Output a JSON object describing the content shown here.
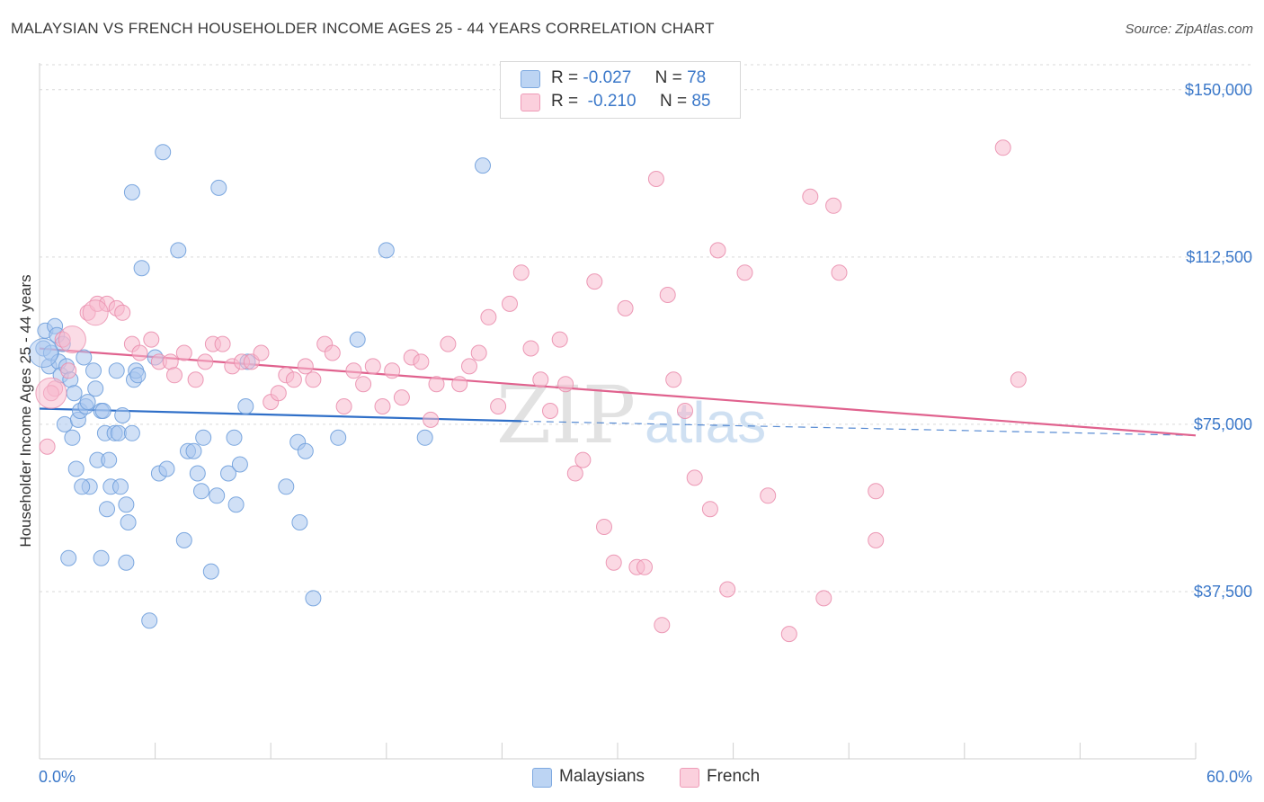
{
  "title": "MALAYSIAN VS FRENCH HOUSEHOLDER INCOME AGES 25 - 44 YEARS CORRELATION CHART",
  "source": "Source: ZipAtlas.com",
  "watermark": {
    "zip": "ZIP",
    "atlas": "atlas"
  },
  "stats": {
    "rows": [
      {
        "r_label": "R =",
        "r_value": "-0.027",
        "n_label": "N =",
        "n_value": "78"
      },
      {
        "r_label": "R =",
        "r_value": "-0.210",
        "n_label": "N =",
        "n_value": "85"
      }
    ]
  },
  "legend": {
    "malaysians": "Malaysians",
    "french": "French"
  },
  "colors": {
    "malaysians_fill": "#a9c7ef",
    "malaysians_stroke": "#6f9fdc",
    "malaysians_line": "#2f6fc8",
    "french_fill": "#f7b9cd",
    "french_stroke": "#ea8fae",
    "french_line": "#e0628e",
    "grid": "#d9d9d9",
    "axis_text": "#3b78c9"
  },
  "chart_data": {
    "type": "scatter",
    "title": "MALAYSIAN VS FRENCH HOUSEHOLDER INCOME AGES 25 - 44 YEARS CORRELATION CHART",
    "xlabel": "",
    "ylabel": "Householder Income Ages 25 - 44 years",
    "xlim": [
      0,
      60
    ],
    "ylim": [
      0,
      156000
    ],
    "x_tick_labels": [
      "0.0%",
      "60.0%"
    ],
    "y_ticks": [
      {
        "value": 37500,
        "label": "$37,500"
      },
      {
        "value": 75000,
        "label": "$75,000"
      },
      {
        "value": 112500,
        "label": "$112,500"
      },
      {
        "value": 150000,
        "label": "$150,000"
      }
    ],
    "grid": true,
    "series": [
      {
        "name": "Malaysians",
        "R": -0.027,
        "N": 78,
        "trend": {
          "x": [
            0,
            25
          ],
          "y": [
            78500,
            75700
          ],
          "dashed_to_x": 60,
          "dashed_to_y": 72500
        },
        "points": [
          [
            0.2,
            92000
          ],
          [
            0.3,
            96000
          ],
          [
            0.5,
            88000
          ],
          [
            0.6,
            91000
          ],
          [
            0.8,
            97000
          ],
          [
            0.9,
            95000
          ],
          [
            1.0,
            89000
          ],
          [
            1.1,
            86000
          ],
          [
            1.2,
            93000
          ],
          [
            1.3,
            75000
          ],
          [
            1.4,
            88000
          ],
          [
            1.6,
            85000
          ],
          [
            1.7,
            72000
          ],
          [
            1.8,
            82000
          ],
          [
            1.9,
            65000
          ],
          [
            2.0,
            76000
          ],
          [
            2.1,
            78000
          ],
          [
            2.3,
            90000
          ],
          [
            2.4,
            79000
          ],
          [
            2.5,
            80000
          ],
          [
            2.6,
            61000
          ],
          [
            2.8,
            87000
          ],
          [
            2.9,
            83000
          ],
          [
            3.0,
            67000
          ],
          [
            3.2,
            78000
          ],
          [
            3.4,
            73000
          ],
          [
            3.5,
            56000
          ],
          [
            3.6,
            67000
          ],
          [
            3.7,
            61000
          ],
          [
            3.9,
            73000
          ],
          [
            4.0,
            87000
          ],
          [
            4.1,
            73000
          ],
          [
            4.2,
            61000
          ],
          [
            4.3,
            77000
          ],
          [
            4.5,
            57000
          ],
          [
            4.6,
            53000
          ],
          [
            4.8,
            73000
          ],
          [
            4.9,
            85000
          ],
          [
            5.0,
            87000
          ],
          [
            5.1,
            86000
          ],
          [
            4.8,
            127000
          ],
          [
            5.3,
            110000
          ],
          [
            5.7,
            31000
          ],
          [
            6.0,
            90000
          ],
          [
            6.2,
            64000
          ],
          [
            6.4,
            136000
          ],
          [
            6.6,
            65000
          ],
          [
            7.2,
            114000
          ],
          [
            7.5,
            49000
          ],
          [
            7.7,
            69000
          ],
          [
            8.0,
            69000
          ],
          [
            8.2,
            64000
          ],
          [
            8.4,
            60000
          ],
          [
            8.5,
            72000
          ],
          [
            8.9,
            42000
          ],
          [
            9.2,
            59000
          ],
          [
            9.3,
            128000
          ],
          [
            9.8,
            64000
          ],
          [
            10.1,
            72000
          ],
          [
            10.2,
            57000
          ],
          [
            10.4,
            66000
          ],
          [
            10.7,
            79000
          ],
          [
            10.8,
            89000
          ],
          [
            12.8,
            61000
          ],
          [
            13.4,
            71000
          ],
          [
            13.5,
            53000
          ],
          [
            13.8,
            69000
          ],
          [
            14.2,
            36000
          ],
          [
            15.5,
            72000
          ],
          [
            16.5,
            94000
          ],
          [
            18.0,
            114000
          ],
          [
            20.0,
            72000
          ],
          [
            23.0,
            133000
          ],
          [
            3.2,
            45000
          ],
          [
            4.5,
            44000
          ],
          [
            1.5,
            45000
          ],
          [
            3.3,
            78000
          ],
          [
            2.2,
            61000
          ]
        ]
      },
      {
        "name": "French",
        "R": -0.21,
        "N": 85,
        "trend": {
          "x": [
            0,
            60
          ],
          "y": [
            92000,
            72500
          ]
        },
        "points": [
          [
            0.4,
            70000
          ],
          [
            0.8,
            83000
          ],
          [
            1.2,
            94000
          ],
          [
            1.5,
            87000
          ],
          [
            2.5,
            100000
          ],
          [
            3.0,
            102000
          ],
          [
            3.5,
            102000
          ],
          [
            4.0,
            101000
          ],
          [
            4.3,
            100000
          ],
          [
            4.8,
            93000
          ],
          [
            5.2,
            91000
          ],
          [
            5.8,
            94000
          ],
          [
            6.2,
            89000
          ],
          [
            6.8,
            89000
          ],
          [
            7.0,
            86000
          ],
          [
            7.5,
            91000
          ],
          [
            8.1,
            85000
          ],
          [
            8.6,
            89000
          ],
          [
            9.0,
            93000
          ],
          [
            9.5,
            93000
          ],
          [
            10.0,
            88000
          ],
          [
            10.5,
            89000
          ],
          [
            11.0,
            89000
          ],
          [
            11.5,
            91000
          ],
          [
            12.0,
            80000
          ],
          [
            12.4,
            82000
          ],
          [
            12.8,
            86000
          ],
          [
            13.2,
            85000
          ],
          [
            13.8,
            88000
          ],
          [
            14.2,
            85000
          ],
          [
            14.8,
            93000
          ],
          [
            15.2,
            91000
          ],
          [
            15.8,
            79000
          ],
          [
            16.3,
            87000
          ],
          [
            16.8,
            84000
          ],
          [
            17.3,
            88000
          ],
          [
            17.8,
            79000
          ],
          [
            18.3,
            87000
          ],
          [
            18.8,
            81000
          ],
          [
            19.3,
            90000
          ],
          [
            19.8,
            89000
          ],
          [
            20.3,
            76000
          ],
          [
            20.6,
            84000
          ],
          [
            21.2,
            93000
          ],
          [
            21.8,
            84000
          ],
          [
            22.3,
            88000
          ],
          [
            22.8,
            91000
          ],
          [
            23.3,
            99000
          ],
          [
            23.8,
            79000
          ],
          [
            24.4,
            102000
          ],
          [
            25.0,
            109000
          ],
          [
            25.5,
            92000
          ],
          [
            26.0,
            85000
          ],
          [
            26.5,
            78000
          ],
          [
            27.0,
            94000
          ],
          [
            27.3,
            84000
          ],
          [
            27.8,
            64000
          ],
          [
            28.2,
            67000
          ],
          [
            28.8,
            107000
          ],
          [
            29.3,
            52000
          ],
          [
            29.8,
            44000
          ],
          [
            30.4,
            101000
          ],
          [
            31.0,
            43000
          ],
          [
            31.4,
            43000
          ],
          [
            32.0,
            130000
          ],
          [
            32.3,
            30000
          ],
          [
            32.6,
            104000
          ],
          [
            32.9,
            85000
          ],
          [
            33.5,
            78000
          ],
          [
            34.0,
            63000
          ],
          [
            34.8,
            56000
          ],
          [
            35.2,
            114000
          ],
          [
            35.7,
            38000
          ],
          [
            36.6,
            109000
          ],
          [
            37.8,
            59000
          ],
          [
            38.9,
            28000
          ],
          [
            40.0,
            126000
          ],
          [
            40.7,
            36000
          ],
          [
            41.2,
            124000
          ],
          [
            41.5,
            109000
          ],
          [
            43.4,
            49000
          ],
          [
            43.4,
            60000
          ],
          [
            50.0,
            137000
          ],
          [
            50.8,
            85000
          ],
          [
            0.6,
            82000
          ]
        ]
      }
    ]
  }
}
